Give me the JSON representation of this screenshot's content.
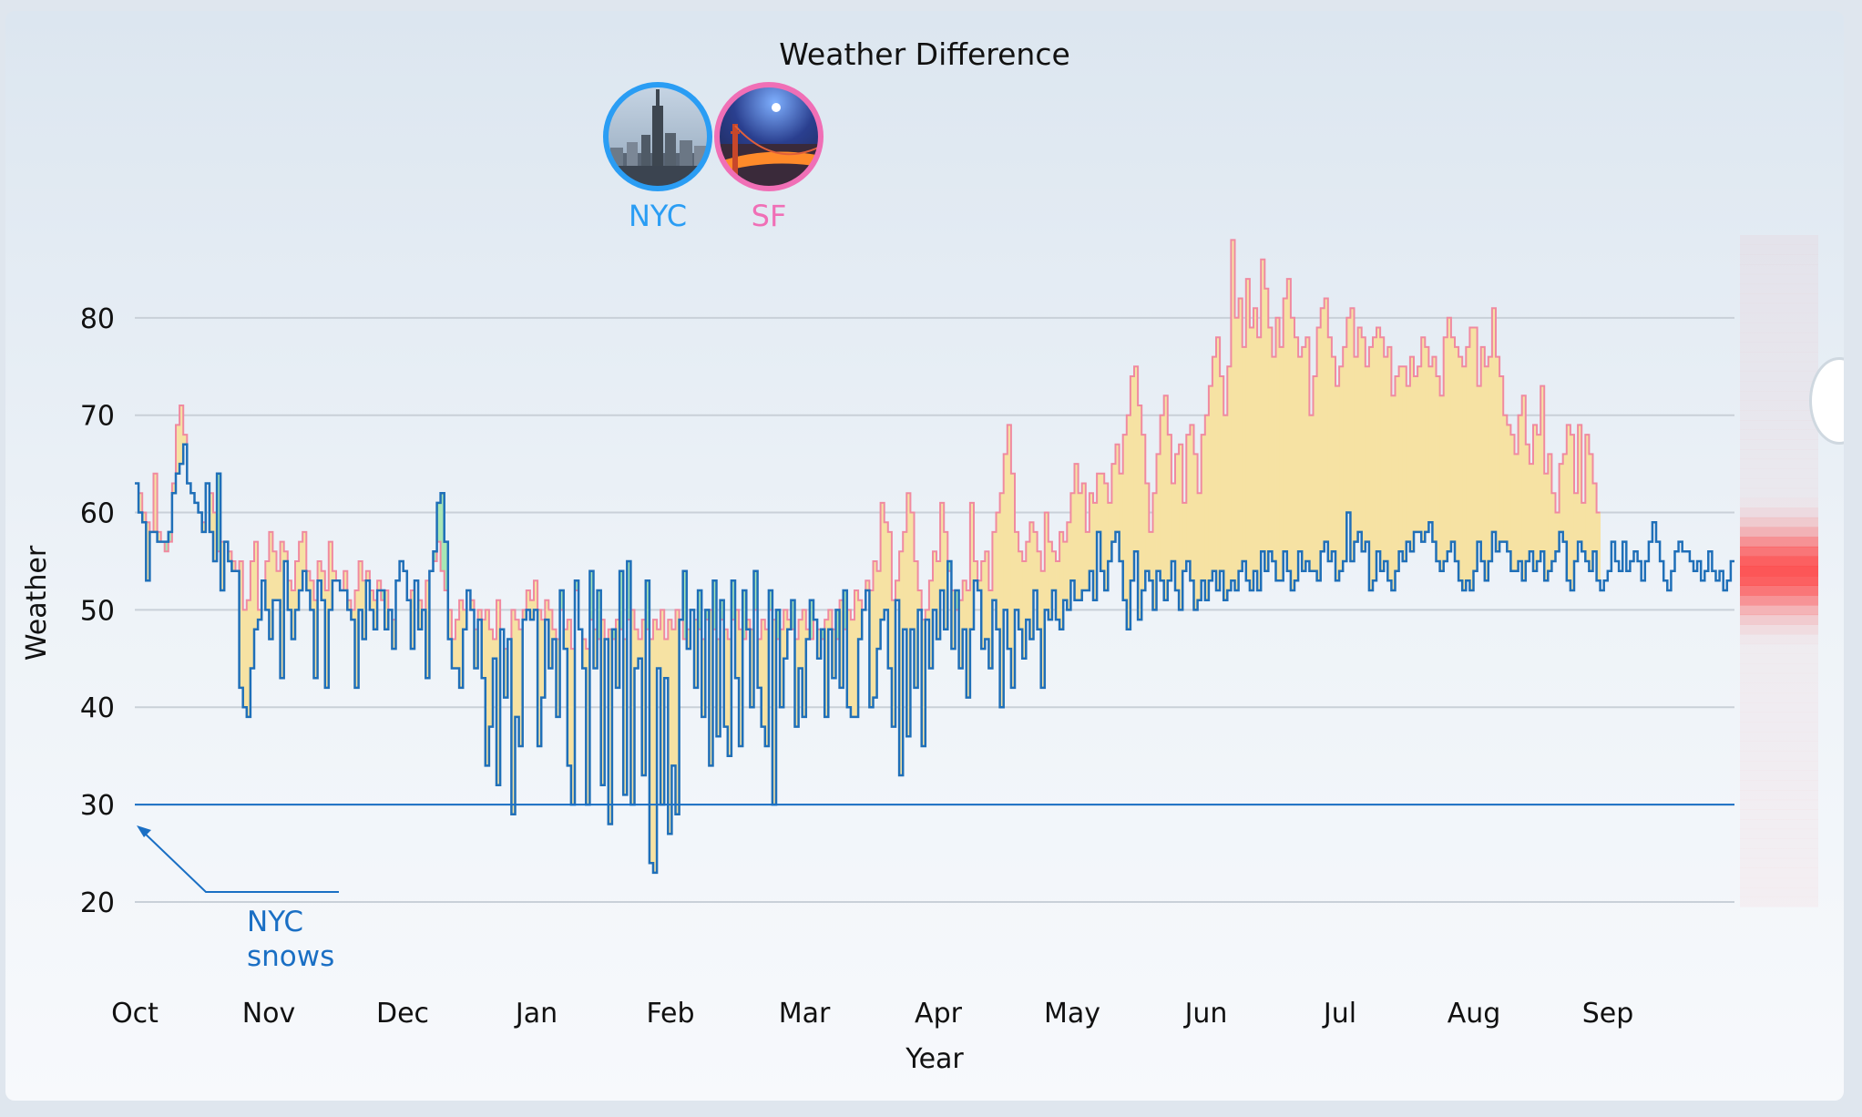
{
  "chart_data": {
    "type": "area",
    "title": "Weather Difference",
    "xlabel": "Year",
    "ylabel": "Weather",
    "ylim": [
      17,
      90
    ],
    "yticks": [
      20,
      30,
      40,
      50,
      60,
      70,
      80
    ],
    "x_tick_labels": [
      "Oct",
      "Nov",
      "Dec",
      "Jan",
      "Feb",
      "Mar",
      "Apr",
      "May",
      "Jun",
      "Jul",
      "Aug",
      "Sep"
    ],
    "grid": true,
    "legend": [
      {
        "name": "NYC",
        "color": "#2a9df4",
        "icon": "nyc-skyline-photo"
      },
      {
        "name": "SF",
        "color": "#f06fb6",
        "icon": "golden-gate-bridge-photo"
      }
    ],
    "fill_colors": {
      "nyc_warmer": "#a8e6b5",
      "sf_warmer": "#f6e2a3"
    },
    "reference_line": {
      "value": 30,
      "label": "NYC snows",
      "color": "#1a6fc4"
    },
    "series": [
      {
        "name": "NYC",
        "color": "#1f6fb8",
        "values": [
          63,
          60,
          59,
          53,
          58,
          58,
          57,
          57,
          57,
          58,
          62,
          64,
          65,
          67,
          63,
          62,
          61,
          60,
          58,
          63,
          58,
          55,
          64,
          52,
          57,
          55,
          54,
          54,
          42,
          40,
          39,
          44,
          48,
          49,
          53,
          50,
          47,
          51,
          51,
          43,
          55,
          50,
          47,
          50,
          52,
          54,
          52,
          50,
          43,
          53,
          51,
          42,
          50,
          53,
          53,
          52,
          52,
          50,
          49,
          42,
          50,
          47,
          53,
          50,
          48,
          52,
          52,
          48,
          50,
          46,
          53,
          55,
          54,
          51,
          46,
          53,
          48,
          50,
          43,
          54,
          56,
          61,
          62,
          57,
          47,
          44,
          44,
          42,
          48,
          52,
          50,
          44,
          49,
          43,
          34,
          38,
          45,
          32,
          48,
          41,
          47,
          29,
          39,
          36,
          49,
          50,
          49,
          50,
          36,
          41,
          49,
          44,
          47,
          39,
          52,
          46,
          34,
          30,
          53,
          48,
          44,
          30,
          54,
          44,
          52,
          32,
          47,
          28,
          48,
          42,
          54,
          31,
          55,
          30,
          44,
          45,
          33,
          53,
          24,
          23,
          44,
          30,
          43,
          27,
          34,
          29,
          49,
          54,
          46,
          50,
          42,
          52,
          39,
          50,
          34,
          53,
          37,
          51,
          38,
          35,
          53,
          43,
          36,
          52,
          48,
          40,
          54,
          42,
          38,
          36,
          52,
          30,
          50,
          40,
          45,
          48,
          51,
          38,
          44,
          39,
          47,
          51,
          49,
          45,
          48,
          39,
          48,
          43,
          50,
          42,
          52,
          40,
          39,
          39,
          47,
          50,
          52,
          40,
          41,
          46,
          49,
          50,
          44,
          38,
          51,
          33,
          48,
          37,
          48,
          42,
          50,
          36,
          49,
          44,
          50,
          47,
          52,
          48,
          55,
          46,
          52,
          44,
          48,
          41,
          48,
          53,
          52,
          46,
          47,
          44,
          51,
          48,
          40,
          50,
          46,
          42,
          50,
          48,
          45,
          49,
          47,
          52,
          48,
          42,
          50,
          49,
          52,
          49,
          48,
          51,
          50,
          53,
          51,
          51,
          52,
          52,
          54,
          51,
          58,
          54,
          52,
          55,
          57,
          58,
          55,
          51,
          48,
          53,
          56,
          49,
          52,
          54,
          53,
          50,
          54,
          53,
          51,
          53,
          55,
          52,
          50,
          54,
          55,
          53,
          50,
          51,
          53,
          51,
          53,
          54,
          52,
          54,
          51,
          52,
          53,
          52,
          54,
          55,
          53,
          52,
          54,
          52,
          56,
          54,
          56,
          55,
          53,
          53,
          56,
          54,
          52,
          53,
          56,
          54,
          55,
          54,
          54,
          53,
          56,
          57,
          55,
          56,
          53,
          54,
          55,
          60,
          55,
          57,
          58,
          56,
          57,
          52,
          53,
          56,
          54,
          55,
          53,
          52,
          54,
          56,
          55,
          57,
          56,
          58,
          58,
          57,
          58,
          59,
          57,
          55,
          54,
          55,
          56,
          57,
          55,
          53,
          52,
          53,
          52,
          54,
          57,
          55,
          53,
          55,
          58,
          56,
          57,
          57,
          56,
          54,
          54,
          55,
          53,
          55,
          56,
          54,
          55,
          56,
          53,
          54,
          55,
          56,
          58,
          57,
          53,
          52,
          55,
          57,
          56,
          55,
          54,
          56,
          53,
          52,
          53,
          54,
          57,
          55,
          54,
          57,
          54,
          55,
          56,
          55,
          53,
          55,
          57,
          59,
          57,
          55,
          53,
          52,
          54,
          56,
          57,
          56,
          56,
          55,
          54,
          55,
          53,
          54,
          56,
          54,
          53,
          54,
          52,
          53,
          55
        ],
        "note": "daily values, step line"
      },
      {
        "name": "SF",
        "color": "#f08aa0",
        "values": [
          63,
          62,
          60,
          59,
          58,
          64,
          58,
          57,
          56,
          57,
          63,
          69,
          71,
          68,
          63,
          62,
          61,
          60,
          59,
          63,
          62,
          60,
          56,
          57,
          57,
          56,
          55,
          54,
          55,
          50,
          51,
          55,
          57,
          50,
          53,
          55,
          58,
          56,
          54,
          57,
          56,
          53,
          52,
          55,
          57,
          58,
          54,
          53,
          51,
          55,
          54,
          52,
          57,
          54,
          53,
          52,
          54,
          51,
          50,
          52,
          55,
          53,
          54,
          52,
          51,
          53,
          51,
          52,
          50,
          49,
          53,
          55,
          54,
          51,
          52,
          53,
          51,
          50,
          53,
          54,
          55,
          57,
          54,
          52,
          50,
          47,
          49,
          51,
          50,
          52,
          51,
          48,
          50,
          49,
          50,
          48,
          47,
          51,
          48,
          46,
          47,
          50,
          49,
          48,
          50,
          52,
          51,
          53,
          50,
          49,
          51,
          50,
          48,
          47,
          50,
          48,
          49,
          46,
          52,
          48,
          47,
          46,
          49,
          48,
          47,
          49,
          47,
          48,
          47,
          49,
          48,
          47,
          49,
          50,
          48,
          47,
          49,
          48,
          47,
          49,
          48,
          50,
          47,
          49,
          48,
          50,
          49,
          47,
          48,
          50,
          49,
          48,
          47,
          49,
          50,
          48,
          47,
          49,
          48,
          47,
          49,
          50,
          48,
          47,
          49,
          48,
          50,
          47,
          49,
          48,
          50,
          49,
          47,
          48,
          50,
          49,
          48,
          47,
          49,
          50,
          48,
          47,
          49,
          48,
          47,
          49,
          50,
          48,
          47,
          51,
          48,
          50,
          49,
          52,
          51,
          50,
          53,
          52,
          55,
          54,
          61,
          59,
          58,
          51,
          53,
          56,
          58,
          62,
          60,
          55,
          52,
          49,
          50,
          53,
          56,
          55,
          61,
          58,
          54,
          52,
          50,
          51,
          53,
          52,
          61,
          55,
          53,
          55,
          56,
          52,
          58,
          60,
          62,
          66,
          69,
          64,
          58,
          56,
          55,
          57,
          59,
          58,
          56,
          54,
          60,
          57,
          56,
          55,
          58,
          57,
          59,
          62,
          65,
          62,
          63,
          58,
          62,
          61,
          64,
          64,
          63,
          61,
          65,
          67,
          64,
          68,
          70,
          74,
          75,
          71,
          68,
          63,
          58,
          62,
          66,
          70,
          72,
          68,
          63,
          66,
          67,
          61,
          68,
          69,
          66,
          62,
          68,
          70,
          73,
          76,
          78,
          74,
          70,
          75,
          88,
          80,
          82,
          77,
          84,
          79,
          81,
          78,
          86,
          83,
          79,
          76,
          80,
          77,
          82,
          84,
          80,
          78,
          76,
          77,
          78,
          70,
          74,
          79,
          81,
          82,
          78,
          76,
          73,
          75,
          77,
          80,
          81,
          76,
          79,
          78,
          75,
          77,
          78,
          79,
          78,
          76,
          77,
          72,
          74,
          75,
          75,
          73,
          76,
          74,
          75,
          78,
          77,
          75,
          76,
          74,
          72,
          78,
          80,
          78,
          77,
          76,
          75,
          77,
          79,
          79,
          73,
          77,
          75,
          76,
          81,
          76,
          74,
          70,
          69,
          68,
          66,
          70,
          72,
          67,
          65,
          69,
          68,
          73,
          64,
          66,
          62,
          60,
          65,
          66,
          69,
          68,
          62,
          69,
          61,
          68,
          66,
          63,
          60
        ],
        "note": "daily values, step line"
      }
    ],
    "heat_strip": {
      "label": "",
      "peak_value": 54,
      "colors": [
        "#ffefef",
        "#ff3b3b"
      ]
    }
  }
}
